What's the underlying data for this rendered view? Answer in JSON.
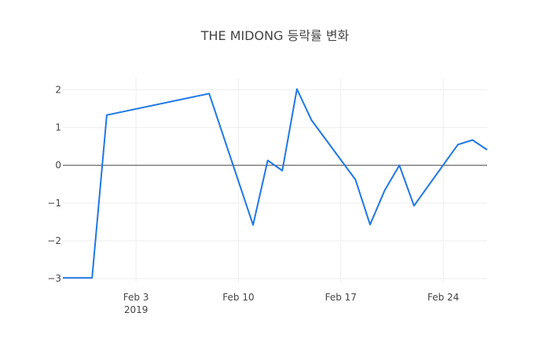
{
  "chart_data": {
    "type": "line",
    "title": "THE MIDONG 등락률 변화",
    "xlabel": "",
    "ylabel": "",
    "x_tick_labels": [
      {
        "date": "2019-02-03",
        "label": "Feb 3",
        "sublabel": "2019"
      },
      {
        "date": "2019-02-10",
        "label": "Feb 10",
        "sublabel": ""
      },
      {
        "date": "2019-02-17",
        "label": "Feb 17",
        "sublabel": ""
      },
      {
        "date": "2019-02-24",
        "label": "Feb 24",
        "sublabel": ""
      }
    ],
    "y_ticks": [
      2,
      1,
      0,
      -1,
      -2,
      -3
    ],
    "y_tick_labels": [
      "2",
      "1",
      "0",
      "−1",
      "−2",
      "−3"
    ],
    "xlim": [
      "2019-01-29",
      "2019-02-27"
    ],
    "ylim": [
      -3.1,
      2.3
    ],
    "grid": true,
    "zero_line": true,
    "line_color": "#1f77e4",
    "series": [
      {
        "x": [
          "2019-01-29",
          "2019-01-31",
          "2019-02-01",
          "2019-02-08",
          "2019-02-11",
          "2019-02-12",
          "2019-02-13",
          "2019-02-14",
          "2019-02-15",
          "2019-02-18",
          "2019-02-19",
          "2019-02-20",
          "2019-02-21",
          "2019-02-22",
          "2019-02-25",
          "2019-02-26",
          "2019-02-27"
        ],
        "y": [
          -2.98,
          -2.98,
          1.33,
          1.9,
          -1.58,
          0.13,
          -0.14,
          2.02,
          1.19,
          -0.38,
          -1.57,
          -0.66,
          0.0,
          -1.07,
          0.55,
          0.67,
          0.41
        ]
      }
    ]
  }
}
